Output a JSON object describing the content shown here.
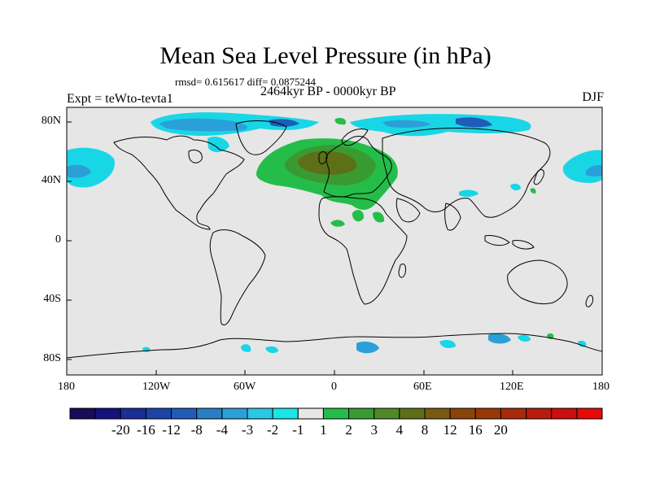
{
  "header": {
    "title": "Mean Sea Level Pressure (in hPa)",
    "stats": "rmsd= 0.615617 diff= 0.0875244",
    "period": "2464kyr BP - 0000kyr BP",
    "experiment": "Expt = teWto-tevta1",
    "season": "DJF"
  },
  "axes": {
    "x_ticks": [
      "180",
      "120W",
      "60W",
      "0",
      "60E",
      "120E",
      "180"
    ],
    "y_ticks": [
      "80N",
      "40N",
      "0",
      "40S",
      "80S"
    ]
  },
  "colorbar": {
    "labels": [
      "-20",
      "-16",
      "-12",
      "-8",
      "-4",
      "-3",
      "-2",
      "-1",
      "1",
      "2",
      "3",
      "4",
      "8",
      "12",
      "16",
      "20"
    ],
    "colors": [
      "#1a0a5c",
      "#15117e",
      "#1a2e96",
      "#1b44a8",
      "#1f5cb8",
      "#2a7ec8",
      "#2ba0d8",
      "#2cc6e6",
      "#19e6e6",
      "#e6e6e6",
      "#25bd49",
      "#3a9a32",
      "#4f8a27",
      "#5d6f17",
      "#7a5a10",
      "#8a4408",
      "#993706",
      "#a82a0a",
      "#b81c0c",
      "#cc0e0e",
      "#e80808"
    ]
  },
  "palette": {
    "neutral": "#e6e6e6",
    "cyan": "#19d6e6",
    "light_blue": "#2ba0d8",
    "blue": "#1f5cb8",
    "dark_blue": "#1a2e96",
    "green": "#25bd49",
    "mid_green": "#3a9a32",
    "dark_green": "#4f8a27",
    "olive": "#5d6f17"
  }
}
